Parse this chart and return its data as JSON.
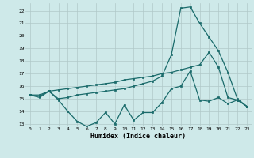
{
  "xlabel": "Humidex (Indice chaleur)",
  "background_color": "#cee9e9",
  "grid_color": "#b0c8c8",
  "line_color": "#1a6b6b",
  "xlim": [
    -0.5,
    23.5
  ],
  "ylim": [
    12.8,
    22.6
  ],
  "xticks": [
    0,
    1,
    2,
    3,
    4,
    5,
    6,
    7,
    8,
    9,
    10,
    11,
    12,
    13,
    14,
    15,
    16,
    17,
    18,
    19,
    20,
    21,
    22,
    23
  ],
  "yticks": [
    13,
    14,
    15,
    16,
    17,
    18,
    19,
    20,
    21,
    22
  ],
  "line1_x": [
    0,
    1,
    2,
    3,
    4,
    5,
    6,
    7,
    8,
    9,
    10,
    11,
    12,
    13,
    14,
    15,
    16,
    17,
    18,
    19,
    20,
    21,
    22,
    23
  ],
  "line1_y": [
    15.3,
    15.1,
    15.6,
    14.9,
    14.0,
    13.2,
    12.8,
    13.1,
    13.9,
    13.0,
    14.5,
    13.3,
    13.9,
    13.9,
    14.7,
    15.8,
    16.0,
    17.2,
    14.9,
    14.8,
    15.1,
    14.6,
    14.9,
    14.4
  ],
  "line2_x": [
    0,
    1,
    2,
    3,
    4,
    5,
    6,
    7,
    8,
    9,
    10,
    11,
    12,
    13,
    14,
    15,
    16,
    17,
    18,
    19,
    20,
    21,
    22,
    23
  ],
  "line2_y": [
    15.3,
    15.3,
    15.6,
    15.7,
    15.8,
    15.9,
    16.0,
    16.1,
    16.2,
    16.3,
    16.5,
    16.6,
    16.7,
    16.8,
    17.0,
    17.1,
    17.3,
    17.5,
    17.7,
    18.7,
    17.5,
    15.1,
    14.9,
    14.4
  ],
  "line3_x": [
    0,
    1,
    2,
    3,
    4,
    5,
    6,
    7,
    8,
    9,
    10,
    11,
    12,
    13,
    14,
    15,
    16,
    17,
    18,
    19,
    20,
    21,
    22,
    23
  ],
  "line3_y": [
    15.3,
    15.2,
    15.6,
    15.0,
    15.1,
    15.3,
    15.4,
    15.5,
    15.6,
    15.7,
    15.8,
    16.0,
    16.2,
    16.4,
    16.8,
    18.5,
    22.2,
    22.3,
    21.0,
    19.9,
    18.8,
    17.1,
    15.0,
    14.4
  ]
}
